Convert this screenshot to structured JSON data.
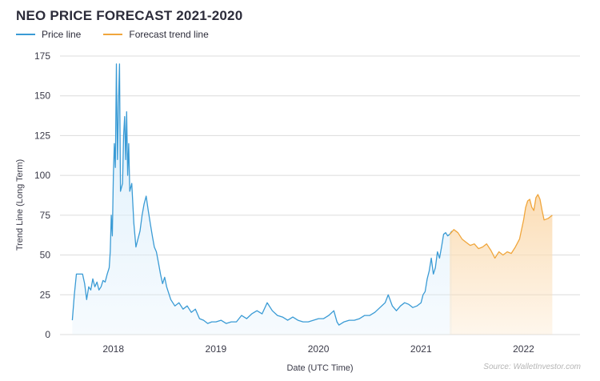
{
  "chart_data": {
    "type": "line",
    "title": "NEO PRICE FORECAST 2021-2020",
    "xlabel": "Date (UTC Time)",
    "ylabel": "Trend Line (Long Term)",
    "ylim": [
      0,
      175
    ],
    "yticks": [
      0,
      25,
      50,
      75,
      100,
      125,
      150,
      175
    ],
    "xlim": [
      2017.48,
      2022.55
    ],
    "xticks": [
      {
        "label": "2018",
        "value": 2018
      },
      {
        "label": "2019",
        "value": 2019
      },
      {
        "label": "2020",
        "value": 2020
      },
      {
        "label": "2021",
        "value": 2021
      },
      {
        "label": "2022",
        "value": 2022
      }
    ],
    "grid": true,
    "legend_position": "top-left",
    "source": "Source: WalletInvestor.com",
    "series": [
      {
        "name": "Price line",
        "color": "#3a9bd5",
        "fill": "#dbeefb",
        "points": [
          [
            2017.6,
            9
          ],
          [
            2017.62,
            25
          ],
          [
            2017.64,
            38
          ],
          [
            2017.7,
            38
          ],
          [
            2017.72,
            32
          ],
          [
            2017.74,
            22
          ],
          [
            2017.76,
            30
          ],
          [
            2017.78,
            28
          ],
          [
            2017.8,
            35
          ],
          [
            2017.82,
            30
          ],
          [
            2017.84,
            33
          ],
          [
            2017.86,
            28
          ],
          [
            2017.88,
            30
          ],
          [
            2017.9,
            34
          ],
          [
            2017.92,
            33
          ],
          [
            2017.94,
            38
          ],
          [
            2017.96,
            42
          ],
          [
            2017.97,
            52
          ],
          [
            2017.98,
            75
          ],
          [
            2017.99,
            62
          ],
          [
            2018.0,
            100
          ],
          [
            2018.01,
            120
          ],
          [
            2018.02,
            105
          ],
          [
            2018.03,
            170
          ],
          [
            2018.04,
            110
          ],
          [
            2018.05,
            145
          ],
          [
            2018.06,
            170
          ],
          [
            2018.07,
            90
          ],
          [
            2018.09,
            95
          ],
          [
            2018.1,
            125
          ],
          [
            2018.11,
            137
          ],
          [
            2018.12,
            110
          ],
          [
            2018.13,
            140
          ],
          [
            2018.14,
            100
          ],
          [
            2018.15,
            120
          ],
          [
            2018.16,
            90
          ],
          [
            2018.18,
            95
          ],
          [
            2018.2,
            70
          ],
          [
            2018.22,
            55
          ],
          [
            2018.24,
            60
          ],
          [
            2018.26,
            65
          ],
          [
            2018.28,
            75
          ],
          [
            2018.3,
            82
          ],
          [
            2018.32,
            87
          ],
          [
            2018.34,
            78
          ],
          [
            2018.36,
            70
          ],
          [
            2018.38,
            62
          ],
          [
            2018.4,
            55
          ],
          [
            2018.42,
            52
          ],
          [
            2018.44,
            45
          ],
          [
            2018.46,
            38
          ],
          [
            2018.48,
            32
          ],
          [
            2018.5,
            36
          ],
          [
            2018.52,
            30
          ],
          [
            2018.54,
            26
          ],
          [
            2018.56,
            22
          ],
          [
            2018.6,
            18
          ],
          [
            2018.64,
            20
          ],
          [
            2018.68,
            16
          ],
          [
            2018.72,
            18
          ],
          [
            2018.76,
            14
          ],
          [
            2018.8,
            16
          ],
          [
            2018.84,
            10
          ],
          [
            2018.88,
            9
          ],
          [
            2018.92,
            7
          ],
          [
            2018.96,
            8
          ],
          [
            2019.0,
            8
          ],
          [
            2019.05,
            9
          ],
          [
            2019.1,
            7
          ],
          [
            2019.15,
            8
          ],
          [
            2019.2,
            8
          ],
          [
            2019.25,
            12
          ],
          [
            2019.3,
            10
          ],
          [
            2019.35,
            13
          ],
          [
            2019.4,
            15
          ],
          [
            2019.45,
            13
          ],
          [
            2019.5,
            20
          ],
          [
            2019.55,
            15
          ],
          [
            2019.6,
            12
          ],
          [
            2019.65,
            11
          ],
          [
            2019.7,
            9
          ],
          [
            2019.75,
            11
          ],
          [
            2019.8,
            9
          ],
          [
            2019.85,
            8
          ],
          [
            2019.9,
            8
          ],
          [
            2019.95,
            9
          ],
          [
            2020.0,
            10
          ],
          [
            2020.05,
            10
          ],
          [
            2020.1,
            12
          ],
          [
            2020.15,
            15
          ],
          [
            2020.18,
            8
          ],
          [
            2020.2,
            6
          ],
          [
            2020.25,
            8
          ],
          [
            2020.3,
            9
          ],
          [
            2020.35,
            9
          ],
          [
            2020.4,
            10
          ],
          [
            2020.45,
            12
          ],
          [
            2020.5,
            12
          ],
          [
            2020.55,
            14
          ],
          [
            2020.6,
            17
          ],
          [
            2020.65,
            20
          ],
          [
            2020.68,
            25
          ],
          [
            2020.72,
            18
          ],
          [
            2020.76,
            15
          ],
          [
            2020.8,
            18
          ],
          [
            2020.84,
            20
          ],
          [
            2020.88,
            19
          ],
          [
            2020.92,
            17
          ],
          [
            2020.96,
            18
          ],
          [
            2021.0,
            20
          ],
          [
            2021.02,
            25
          ],
          [
            2021.04,
            27
          ],
          [
            2021.06,
            35
          ],
          [
            2021.08,
            40
          ],
          [
            2021.1,
            48
          ],
          [
            2021.12,
            38
          ],
          [
            2021.14,
            42
          ],
          [
            2021.16,
            52
          ],
          [
            2021.18,
            48
          ],
          [
            2021.2,
            55
          ],
          [
            2021.22,
            63
          ],
          [
            2021.24,
            64
          ],
          [
            2021.26,
            62
          ],
          [
            2021.28,
            63
          ],
          [
            2021.3,
            65
          ]
        ]
      },
      {
        "name": "Forecast trend line",
        "color": "#f0a63c",
        "fill": "#fbdcb3",
        "points": [
          [
            2021.28,
            63
          ],
          [
            2021.32,
            66
          ],
          [
            2021.36,
            64
          ],
          [
            2021.4,
            60
          ],
          [
            2021.44,
            58
          ],
          [
            2021.48,
            56
          ],
          [
            2021.52,
            57
          ],
          [
            2021.56,
            54
          ],
          [
            2021.6,
            55
          ],
          [
            2021.64,
            57
          ],
          [
            2021.68,
            53
          ],
          [
            2021.72,
            48
          ],
          [
            2021.76,
            52
          ],
          [
            2021.8,
            50
          ],
          [
            2021.84,
            52
          ],
          [
            2021.88,
            51
          ],
          [
            2021.92,
            55
          ],
          [
            2021.96,
            60
          ],
          [
            2022.0,
            72
          ],
          [
            2022.02,
            80
          ],
          [
            2022.04,
            84
          ],
          [
            2022.06,
            85
          ],
          [
            2022.08,
            80
          ],
          [
            2022.1,
            78
          ],
          [
            2022.12,
            86
          ],
          [
            2022.14,
            88
          ],
          [
            2022.16,
            85
          ],
          [
            2022.18,
            78
          ],
          [
            2022.2,
            72
          ],
          [
            2022.24,
            73
          ],
          [
            2022.28,
            75
          ]
        ]
      }
    ]
  }
}
